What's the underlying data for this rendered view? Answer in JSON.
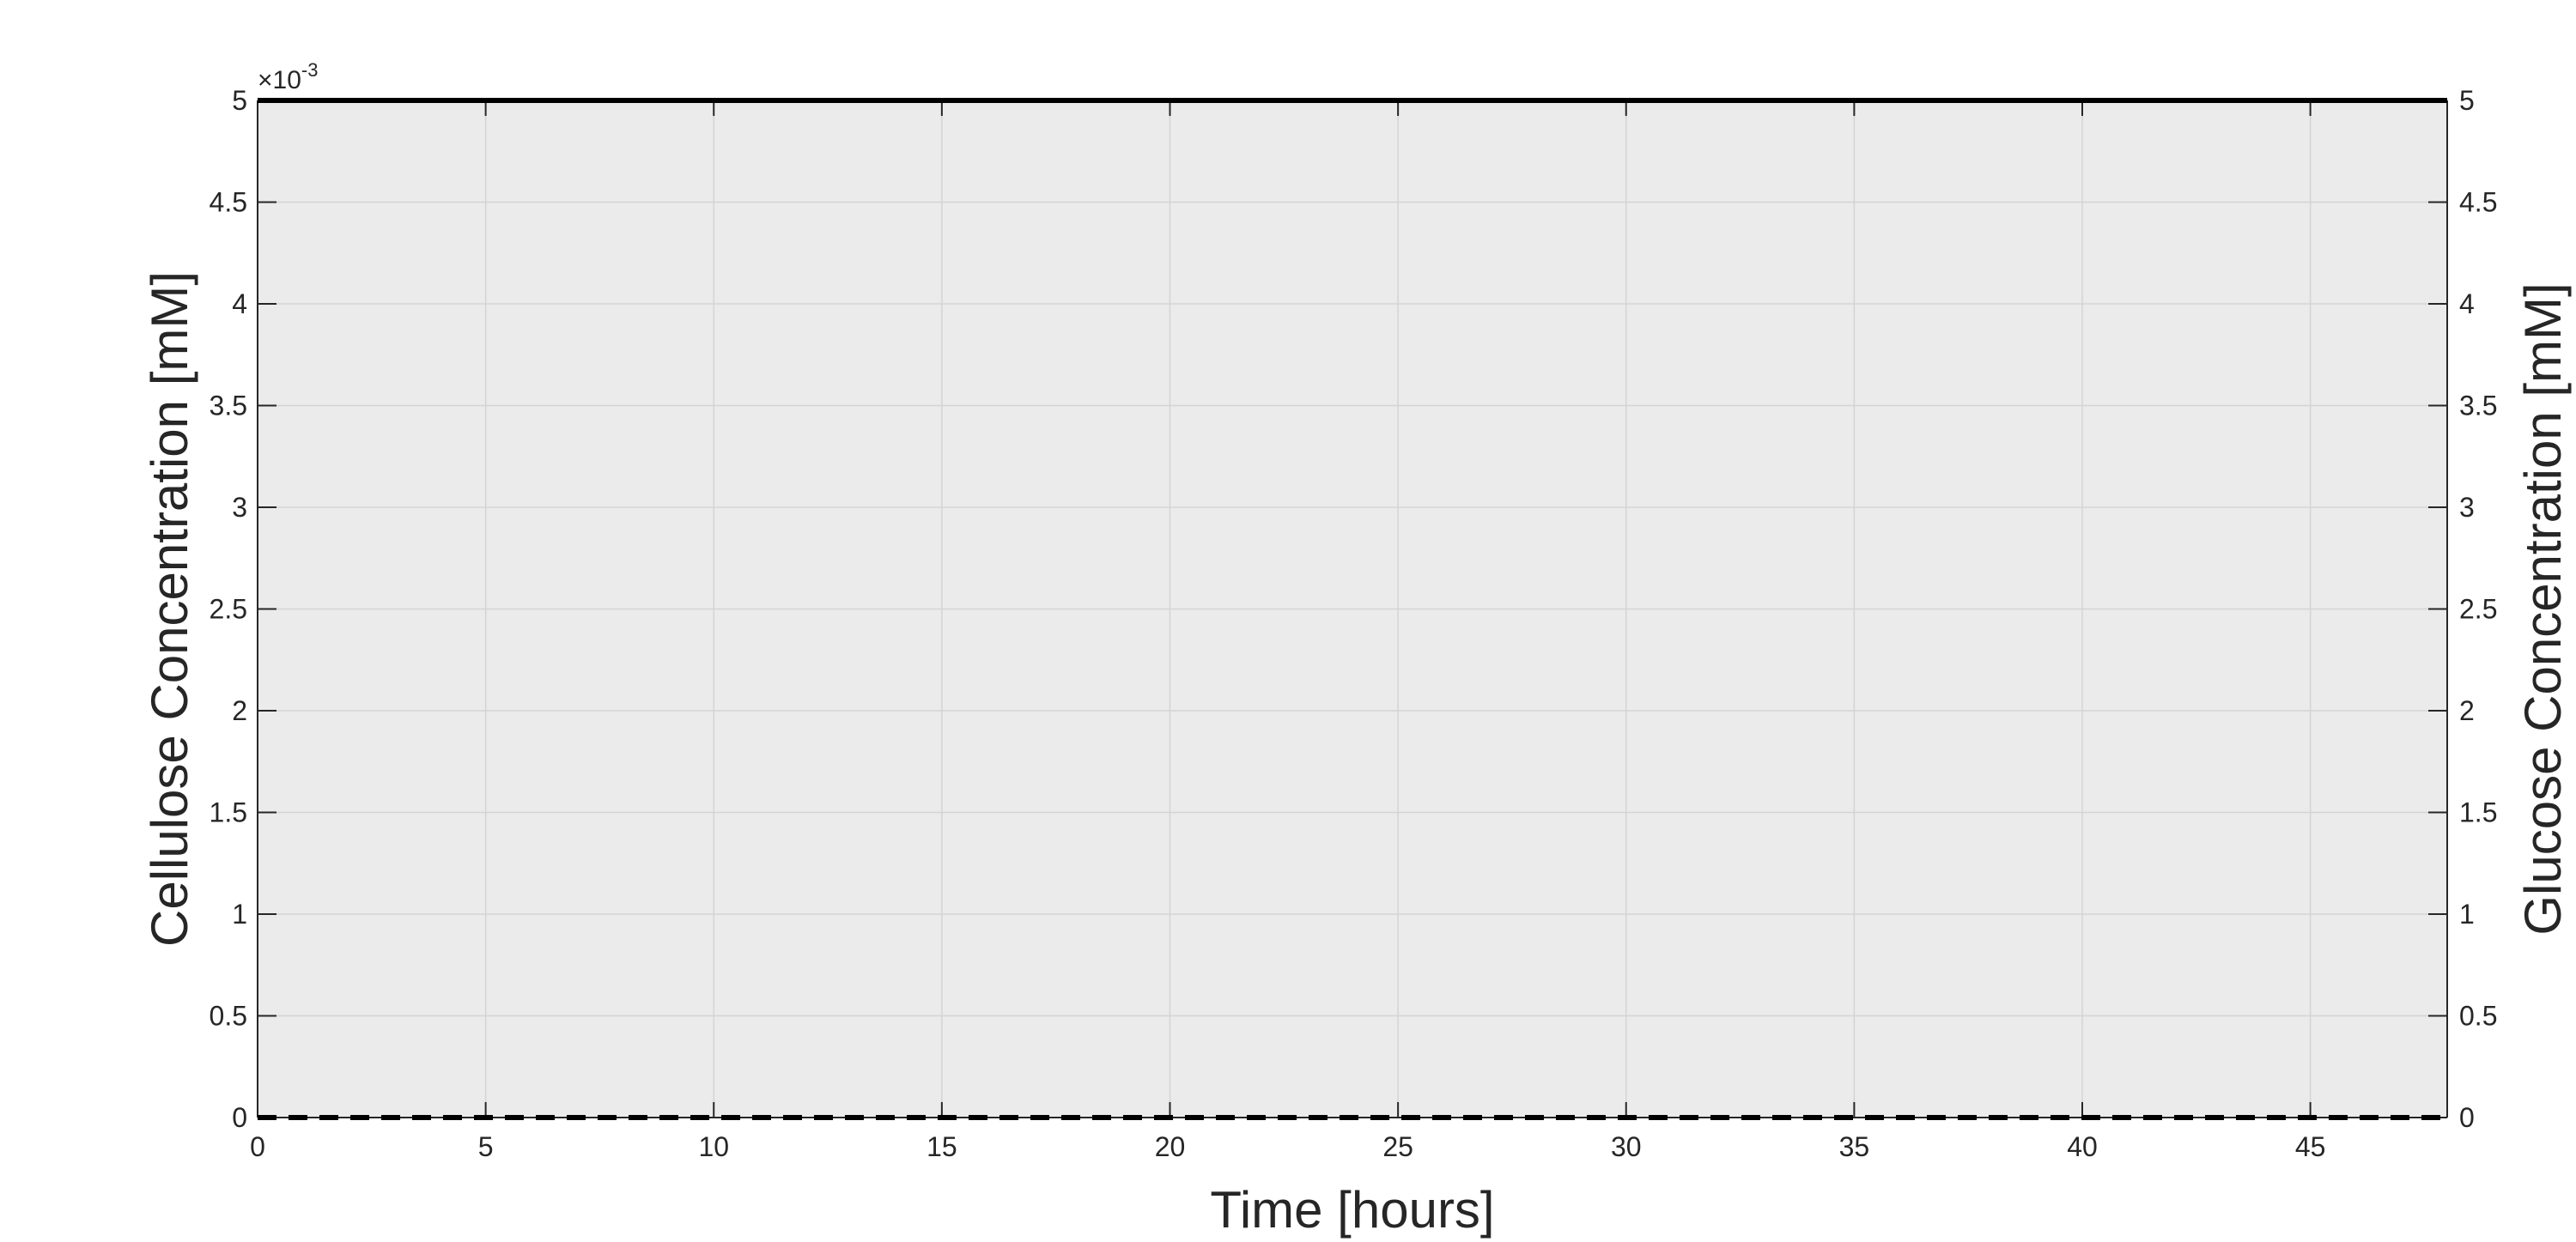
{
  "chart_data": {
    "type": "line",
    "title": "",
    "xlabel": "Time [hours]",
    "ylabel": "Cellulose Concentration [mM]",
    "ylabel_right": "Glucose Concentration [mM]",
    "xlim": [
      0,
      48
    ],
    "ylim": [
      0,
      0.005
    ],
    "ylim_right": [
      0,
      5
    ],
    "x_ticks": [
      0,
      5,
      10,
      15,
      20,
      25,
      30,
      35,
      40,
      45
    ],
    "y_ticks": [
      0,
      0.5,
      1,
      1.5,
      2,
      2.5,
      3,
      3.5,
      4,
      4.5,
      5
    ],
    "y_ticks_right": [
      0,
      0.5,
      1,
      1.5,
      2,
      2.5,
      3,
      3.5,
      4,
      4.5,
      5
    ],
    "y_exponent_label": "×10",
    "y_exponent_power": "-3",
    "grid": true,
    "background_color": "#ebebeb",
    "series": [
      {
        "axis": "left",
        "style": "solid",
        "color": "#000000",
        "x": [
          0,
          48
        ],
        "y": [
          0.005,
          0.005
        ]
      },
      {
        "axis": "right",
        "style": "dashed",
        "color": "#000000",
        "x": [
          0,
          48
        ],
        "y": [
          0,
          0
        ]
      }
    ]
  }
}
